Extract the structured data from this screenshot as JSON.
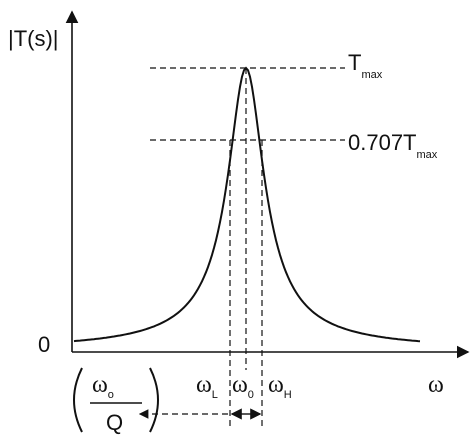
{
  "diagram": {
    "y_axis_label": "|T(s)|",
    "x_axis_label": "ω",
    "origin_label": "0",
    "peak_label": {
      "main": "T",
      "sub": "max"
    },
    "half_power_label": {
      "main": "0.707T",
      "sub": "max"
    },
    "lower_cutoff": {
      "main": "ω",
      "sub": "L"
    },
    "center_frequency": {
      "main": "ω",
      "sub": "0"
    },
    "upper_cutoff": {
      "main": "ω",
      "sub": "H"
    },
    "bandwidth": {
      "numerator": {
        "main": "ω",
        "sub": "o"
      },
      "denominator": "Q"
    }
  }
}
